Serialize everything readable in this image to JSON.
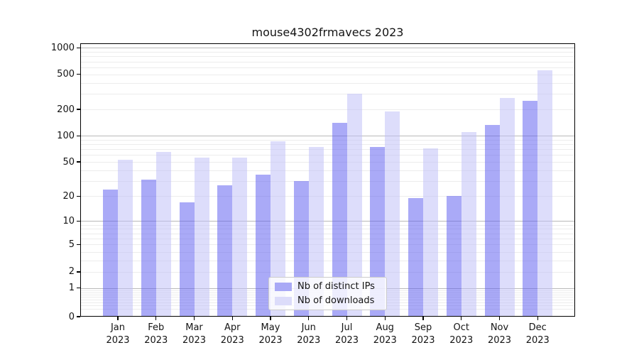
{
  "chart_data": {
    "type": "bar",
    "title": "mouse4302frmavecs 2023",
    "categories": [
      "Jan 2023",
      "Feb 2023",
      "Mar 2023",
      "Apr 2023",
      "May 2023",
      "Jun 2023",
      "Jul 2023",
      "Aug 2023",
      "Sep 2023",
      "Oct 2023",
      "Nov 2023",
      "Dec 2023"
    ],
    "series": [
      {
        "name": "Nb of distinct IPs",
        "values": [
          24,
          31,
          17,
          27,
          36,
          30,
          140,
          75,
          19,
          20,
          132,
          250
        ]
      },
      {
        "name": "Nb of downloads",
        "values": [
          53,
          65,
          56,
          56,
          86,
          75,
          300,
          190,
          72,
          110,
          272,
          555
        ]
      }
    ],
    "xlabel": "",
    "ylabel": "",
    "yscale": "log-like (compressed toward 0, linear below 1)",
    "yticks": [
      1000,
      500,
      200,
      100,
      50,
      20,
      10,
      5,
      2,
      1,
      0
    ],
    "ylim": [
      0,
      1250
    ],
    "grid": true,
    "gridlines_major_at": [
      1,
      10,
      100,
      1000
    ],
    "legend_position": "lower center"
  },
  "colors": {
    "bar_distinct_ips": "#a9a9f6",
    "bar_downloads": "#dcdcfa",
    "bar_distinct_ips_fill": "rgba(95,95,240,0.53)",
    "bar_downloads_fill": "rgba(190,190,247,0.53)",
    "gridline_major": "#b9b9b9",
    "gridline_minor": "#ececec",
    "axis": "#000000",
    "text": "#141414",
    "legend_border": "#cccccc"
  }
}
